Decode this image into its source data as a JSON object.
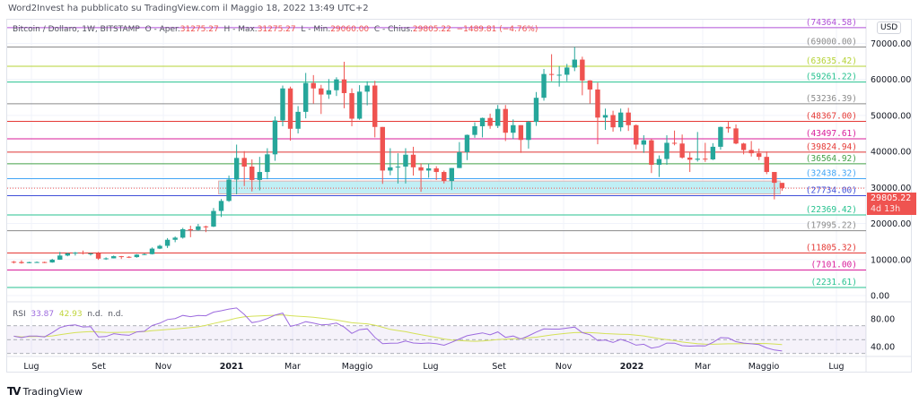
{
  "publish_line": "Word2Invest ha pubblicato su TradingView.com il Maggio 18, 2022 13:49 UTC+2",
  "legend": {
    "symbol": "Bitcoin / Dollaro, 1W, BITSTAMP",
    "open_label": "O - Aper.",
    "open": "31275.27",
    "high_label": "H - Max.",
    "high": "31275.27",
    "low_label": "L - Min.",
    "low": "29060.00",
    "close_label": "C - Chius.",
    "close": "29805.22",
    "change": "−1489.81 (−4.76%)"
  },
  "rsi_legend": {
    "name": "RSI",
    "value": "33.87",
    "ma_value": "42.93",
    "na1": "n.d.",
    "na2": "n.d."
  },
  "currency": "USD",
  "last_price": {
    "value": "29805.22",
    "countdown": "4d 13h",
    "color": "#ef5350"
  },
  "logo": "TradingView",
  "colors": {
    "up": "#26a69a",
    "down": "#ef5350",
    "rsi": "#9c6ade",
    "rsi_ma": "#d4e157",
    "zone": "#b2ebf2"
  },
  "chart_data": [
    {
      "type": "candlestick",
      "interval": "1W",
      "ylim": [
        0,
        75000
      ],
      "y_ticks": [
        "70000.00",
        "60000.00",
        "50000.00",
        "40000.00",
        "30000.00",
        "20000.00",
        "10000.00",
        "0.00"
      ],
      "x_ticks": [
        "Lug",
        "Set",
        "Nov",
        "2021",
        "Mar",
        "Maggio",
        "Lug",
        "Set",
        "Nov",
        "2022",
        "Mar",
        "Maggio",
        "Lug"
      ],
      "grid": true,
      "start_week": "2020-06-15",
      "ohlc": [
        [
          9380,
          9600,
          8900,
          9300
        ],
        [
          9300,
          9780,
          8840,
          9000
        ],
        [
          9000,
          9370,
          8950,
          9280
        ],
        [
          9280,
          9460,
          9130,
          9300
        ],
        [
          9300,
          9400,
          9000,
          9180
        ],
        [
          9180,
          10200,
          9100,
          9950
        ],
        [
          9950,
          12100,
          9900,
          11100
        ],
        [
          11100,
          11900,
          10900,
          11700
        ],
        [
          11700,
          12100,
          11100,
          11900
        ],
        [
          11900,
          12480,
          11400,
          11650
        ],
        [
          11650,
          11800,
          11100,
          11700
        ],
        [
          11700,
          12100,
          9900,
          10250
        ],
        [
          10250,
          10600,
          9900,
          10330
        ],
        [
          10330,
          11100,
          10300,
          10920
        ],
        [
          10920,
          10990,
          10150,
          10750
        ],
        [
          10750,
          10950,
          10400,
          10670
        ],
        [
          10670,
          11500,
          10500,
          11370
        ],
        [
          11370,
          11700,
          11200,
          11500
        ],
        [
          11500,
          13350,
          11400,
          13030
        ],
        [
          13030,
          14100,
          12900,
          13800
        ],
        [
          13800,
          15950,
          13200,
          15480
        ],
        [
          15480,
          16400,
          14800,
          16070
        ],
        [
          16070,
          18800,
          15800,
          18400
        ],
        [
          18400,
          19400,
          16200,
          18200
        ],
        [
          18200,
          19900,
          18000,
          19200
        ],
        [
          19200,
          19400,
          17600,
          19150
        ],
        [
          19150,
          24300,
          19000,
          23480
        ],
        [
          23480,
          26800,
          21800,
          26270
        ],
        [
          26270,
          33300,
          26000,
          32200
        ],
        [
          32200,
          41900,
          28100,
          38200
        ],
        [
          38200,
          40100,
          30400,
          35800
        ],
        [
          35800,
          37800,
          28900,
          32100
        ],
        [
          32100,
          38500,
          29200,
          34300
        ],
        [
          34300,
          40900,
          32300,
          39200
        ],
        [
          39200,
          49700,
          37400,
          48600
        ],
        [
          48600,
          58300,
          47000,
          57500
        ],
        [
          57500,
          58000,
          43000,
          46300
        ],
        [
          46300,
          52600,
          45000,
          51000
        ],
        [
          51000,
          61800,
          49200,
          59000
        ],
        [
          59000,
          61200,
          53300,
          57500
        ],
        [
          57500,
          58500,
          50400,
          55800
        ],
        [
          55800,
          60100,
          54600,
          57000
        ],
        [
          57000,
          60600,
          55400,
          60000
        ],
        [
          60000,
          64900,
          52000,
          56200
        ],
        [
          56200,
          57500,
          47000,
          49100
        ],
        [
          49100,
          58400,
          48800,
          56600
        ],
        [
          56600,
          59500,
          52800,
          58300
        ],
        [
          58300,
          59600,
          43900,
          46800
        ],
        [
          46800,
          46800,
          31000,
          34700
        ],
        [
          34700,
          40900,
          33400,
          35600
        ],
        [
          35600,
          39500,
          31100,
          35800
        ],
        [
          35800,
          40900,
          31100,
          39100
        ],
        [
          39100,
          41300,
          33300,
          35600
        ],
        [
          35600,
          36700,
          28800,
          34700
        ],
        [
          34700,
          36600,
          32700,
          35300
        ],
        [
          35300,
          35900,
          32100,
          34300
        ],
        [
          34300,
          34700,
          31100,
          31800
        ],
        [
          31800,
          35400,
          29300,
          35400
        ],
        [
          35400,
          42600,
          35400,
          39800
        ],
        [
          39800,
          44700,
          37600,
          44600
        ],
        [
          44600,
          48100,
          43800,
          47000
        ],
        [
          47000,
          49400,
          43900,
          49300
        ],
        [
          49300,
          50500,
          46300,
          47100
        ],
        [
          47100,
          52900,
          46500,
          51800
        ],
        [
          51800,
          52900,
          42900,
          45200
        ],
        [
          45200,
          48900,
          43400,
          47300
        ],
        [
          47300,
          47300,
          39600,
          43200
        ],
        [
          43200,
          48500,
          40800,
          48200
        ],
        [
          48200,
          56500,
          47100,
          54900
        ],
        [
          54900,
          62900,
          54100,
          61500
        ],
        [
          61500,
          67000,
          59500,
          61300
        ],
        [
          61300,
          63700,
          58000,
          61300
        ],
        [
          61300,
          64300,
          59500,
          63300
        ],
        [
          63300,
          69000,
          62300,
          65500
        ],
        [
          65500,
          66300,
          55600,
          59700
        ],
        [
          59700,
          59800,
          53300,
          57200
        ],
        [
          57200,
          59100,
          42000,
          49400
        ],
        [
          49400,
          51900,
          46000,
          50100
        ],
        [
          50100,
          51300,
          45500,
          46700
        ],
        [
          46700,
          51900,
          45600,
          50800
        ],
        [
          50800,
          52100,
          45700,
          47300
        ],
        [
          47300,
          47500,
          40600,
          41900
        ],
        [
          41900,
          44500,
          39600,
          43100
        ],
        [
          43100,
          43500,
          34000,
          36300
        ],
        [
          36300,
          38900,
          32900,
          37900
        ],
        [
          37900,
          44500,
          36300,
          42400
        ],
        [
          42400,
          45800,
          41700,
          42200
        ],
        [
          42200,
          44700,
          38000,
          38300
        ],
        [
          38300,
          39800,
          34300,
          37700
        ],
        [
          37700,
          45400,
          37200,
          38000
        ],
        [
          38000,
          42400,
          37100,
          37800
        ],
        [
          37800,
          42300,
          37600,
          41300
        ],
        [
          41300,
          46900,
          40500,
          46800
        ],
        [
          46800,
          48200,
          45200,
          46400
        ],
        [
          46400,
          47500,
          42000,
          42200
        ],
        [
          42200,
          42400,
          39200,
          40400
        ],
        [
          40400,
          42900,
          38600,
          39500
        ],
        [
          39500,
          40800,
          37600,
          38500
        ],
        [
          38500,
          40000,
          33700,
          34300
        ],
        [
          34300,
          34300,
          26700,
          31300
        ],
        [
          31275.27,
          31275.27,
          29060.0,
          29805.22
        ]
      ],
      "levels": [
        {
          "value": 74364.58,
          "label": "(74364.58)",
          "color": "#b04fd6"
        },
        {
          "value": 69000.0,
          "label": "(69000.00)",
          "color": "#8a8a8a"
        },
        {
          "value": 63635.42,
          "label": "(63635.42)",
          "color": "#b5d334"
        },
        {
          "value": 59261.22,
          "label": "(59261.22)",
          "color": "#26c28f"
        },
        {
          "value": 53236.39,
          "label": "(53236.39)",
          "color": "#8a8a8a"
        },
        {
          "value": 48367.0,
          "label": "(48367.00)",
          "color": "#e53935"
        },
        {
          "value": 43497.61,
          "label": "(43497.61)",
          "color": "#d81b9a"
        },
        {
          "value": 39824.94,
          "label": "(39824.94)",
          "color": "#e53935"
        },
        {
          "value": 36564.92,
          "label": "(36564.92)",
          "color": "#43a047"
        },
        {
          "value": 32438.32,
          "label": "(32438.32)",
          "color": "#42a5f5"
        },
        {
          "value": 27734.0,
          "label": "(27734.00)",
          "color": "#3f4fd8"
        },
        {
          "value": 22369.42,
          "label": "(22369.42)",
          "color": "#26c28f"
        },
        {
          "value": 17995.22,
          "label": "(17995.22)",
          "color": "#8a8a8a"
        },
        {
          "value": 11805.32,
          "label": "(11805.32)",
          "color": "#e53935"
        },
        {
          "value": 7101.0,
          "label": "(7101.00)",
          "color": "#d81b9a"
        },
        {
          "value": 2231.61,
          "label": "(2231.61)",
          "color": "#26c28f"
        }
      ],
      "zone": {
        "from_week": "2020-12-21",
        "to_week": "2022-05-16",
        "low": 28200,
        "high": 31800
      }
    },
    {
      "type": "line",
      "title": "RSI",
      "y_ticks": [
        "80.00",
        "40.00"
      ],
      "bands": [
        70,
        50,
        30
      ],
      "series": [
        {
          "name": "RSI",
          "period": 14
        },
        {
          "name": "MA",
          "period": 14
        }
      ]
    }
  ]
}
